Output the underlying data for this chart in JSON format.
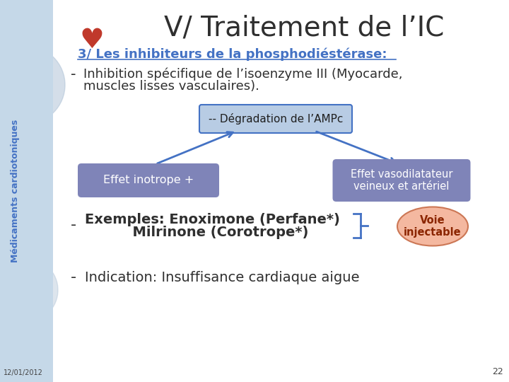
{
  "title": "V/ Traitement de l’IC",
  "title_fontsize": 28,
  "title_color": "#2F2F2F",
  "bg_color": "#FFFFFF",
  "left_bg_color": "#C5D8E8",
  "slide_number": "22",
  "date": "12/01/2012",
  "section_heading": "3/ Les inhibiteurs de la phosphodiéstérase:",
  "section_color": "#4472C4",
  "section_fontsize": 13,
  "bullet1_line1": "Inhibition spécifique de l’isoenzyme III (Myocarde,",
  "bullet1_line2": "muscles lisses vasculaires).",
  "bullet1_fontsize": 13,
  "center_box_text": "-- Dégradation de l’AMPc",
  "center_box_color": "#B8CCE4",
  "center_box_border": "#4472C4",
  "left_box_text": "Effet inotrope +",
  "left_box_color": "#7F84B8",
  "right_box_text": "Effet vasodilatateur\nveineux et artériel",
  "right_box_color": "#7F84B8",
  "box_text_color": "#FFFFFF",
  "arrow_color": "#4472C4",
  "examples_text1": "Exemples: Enoximone (Perfane*)",
  "examples_text2": "          Milrinone (Corotrope*)",
  "examples_fontsize": 14,
  "voie_text": "Voie\ninjectable",
  "voie_ellipse_color": "#F4B8A0",
  "voie_text_color": "#8B2500",
  "indication_text": "Indication: Insuffisance cardiaque aigue",
  "indication_fontsize": 14,
  "sidebar_text": "Médicaments cardiotoniques",
  "sidebar_color": "#4472C4",
  "sidebar_bg": "#B8CCE4"
}
